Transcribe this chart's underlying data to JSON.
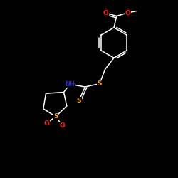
{
  "background_color": "#000000",
  "bond_color": "#ffffff",
  "atom_colors": {
    "O": "#ff2200",
    "S": "#ffa500",
    "N": "#2222ff",
    "C": "#ffffff",
    "H": "#ffffff"
  },
  "figsize": [
    2.5,
    2.5
  ],
  "dpi": 100,
  "lw": 1.1
}
